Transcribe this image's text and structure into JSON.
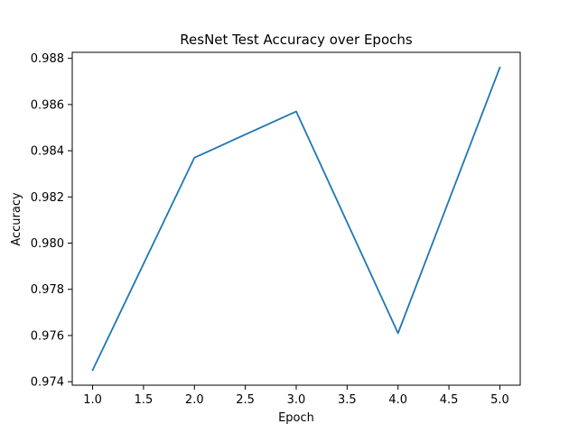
{
  "chart_data": {
    "type": "line",
    "title": "ResNet Test Accuracy over Epochs",
    "xlabel": "Epoch",
    "ylabel": "Accuracy",
    "x": [
      1.0,
      2.0,
      3.0,
      4.0,
      5.0
    ],
    "series": [
      {
        "values": [
          0.9745,
          0.9837,
          0.9857,
          0.9761,
          0.9876
        ],
        "color": "#1f77b4"
      }
    ],
    "xlim": [
      0.8,
      5.2
    ],
    "ylim": [
      0.97385,
      0.98826
    ],
    "x_ticks": [
      1.0,
      1.5,
      2.0,
      2.5,
      3.0,
      3.5,
      4.0,
      4.5,
      5.0
    ],
    "x_tick_labels": [
      "1.0",
      "1.5",
      "2.0",
      "2.5",
      "3.0",
      "3.5",
      "4.0",
      "4.5",
      "5.0"
    ],
    "y_ticks": [
      0.974,
      0.976,
      0.978,
      0.98,
      0.982,
      0.984,
      0.986,
      0.988
    ],
    "y_tick_labels": [
      "0.974",
      "0.976",
      "0.978",
      "0.980",
      "0.982",
      "0.984",
      "0.986",
      "0.988"
    ],
    "grid": false,
    "legend": "none"
  }
}
